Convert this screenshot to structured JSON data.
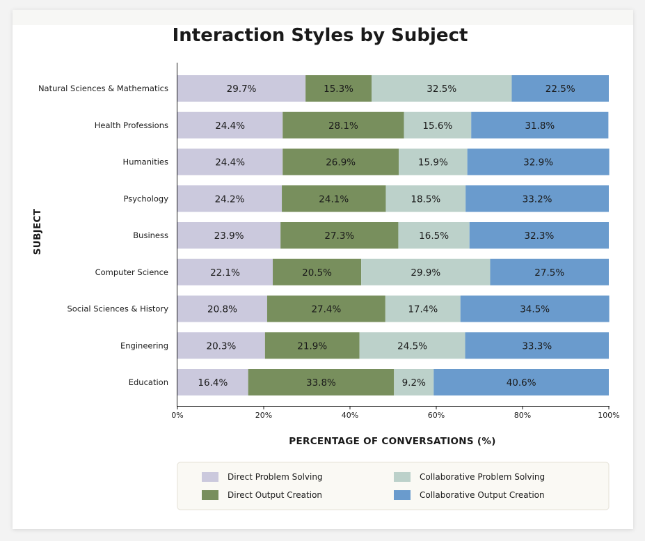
{
  "chart_data": {
    "type": "bar",
    "orientation": "horizontal",
    "stacked": true,
    "title": "Interaction Styles by Subject",
    "xlabel": "PERCENTAGE OF CONVERSATIONS (%)",
    "ylabel": "SUBJECT",
    "xlim": [
      0,
      100
    ],
    "x_ticks": [
      "0%",
      "20%",
      "40%",
      "60%",
      "80%",
      "100%"
    ],
    "grid": false,
    "legend_position": "bottom",
    "categories": [
      "Natural Sciences & Mathematics",
      "Health Professions",
      "Humanities",
      "Psychology",
      "Business",
      "Computer Science",
      "Social Sciences & History",
      "Engineering",
      "Education"
    ],
    "series": [
      {
        "name": "Direct Problem Solving",
        "color": "#cbc9dd",
        "values": [
          29.7,
          24.4,
          24.4,
          24.2,
          23.9,
          22.1,
          20.8,
          20.3,
          16.4
        ]
      },
      {
        "name": "Direct Output Creation",
        "color": "#788f5d",
        "values": [
          15.3,
          28.1,
          26.9,
          24.1,
          27.3,
          20.5,
          27.4,
          21.9,
          33.8
        ]
      },
      {
        "name": "Collaborative Problem Solving",
        "color": "#bcd1ca",
        "values": [
          32.5,
          15.6,
          15.9,
          18.5,
          16.5,
          29.9,
          17.4,
          24.5,
          9.2
        ]
      },
      {
        "name": "Collaborative Output Creation",
        "color": "#6a9bcd",
        "values": [
          22.5,
          31.8,
          32.9,
          33.2,
          32.3,
          27.5,
          34.5,
          33.3,
          40.6
        ]
      }
    ],
    "data_labels": [
      [
        "29.7%",
        "15.3%",
        "32.5%",
        "22.5%"
      ],
      [
        "24.4%",
        "28.1%",
        "15.6%",
        "31.8%"
      ],
      [
        "24.4%",
        "26.9%",
        "15.9%",
        "32.9%"
      ],
      [
        "24.2%",
        "24.1%",
        "18.5%",
        "33.2%"
      ],
      [
        "23.9%",
        "27.3%",
        "16.5%",
        "32.3%"
      ],
      [
        "22.1%",
        "20.5%",
        "29.9%",
        "27.5%"
      ],
      [
        "20.8%",
        "27.4%",
        "17.4%",
        "34.5%"
      ],
      [
        "20.3%",
        "21.9%",
        "24.5%",
        "33.3%"
      ],
      [
        "16.4%",
        "33.8%",
        "9.2%",
        "40.6%"
      ]
    ],
    "legend_layout": [
      [
        "Direct Problem Solving",
        "Collaborative Problem Solving"
      ],
      [
        "Direct Output Creation",
        "Collaborative Output Creation"
      ]
    ]
  }
}
